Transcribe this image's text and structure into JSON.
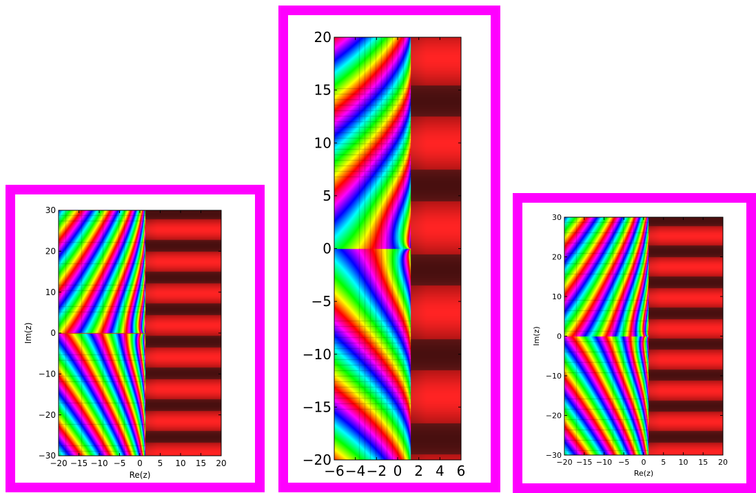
{
  "colors": {
    "frame": "#ff00ff",
    "background": "#ffffff",
    "axes": "#000000"
  },
  "chart_data": [
    {
      "type": "heatmap",
      "title": "",
      "xlabel": "Re(z)",
      "ylabel": "Im(z)",
      "xlim": [
        -20,
        20
      ],
      "ylim": [
        -30,
        30
      ],
      "xticks": [
        -20,
        -15,
        -10,
        -5,
        0,
        5,
        10,
        15,
        20
      ],
      "yticks": [
        -30,
        -20,
        -10,
        0,
        10,
        20,
        30
      ],
      "xtick_labels": [
        "−20",
        "−15",
        "−10",
        "−5",
        "0",
        "5",
        "10",
        "15",
        "20"
      ],
      "ytick_labels": [
        "−30",
        "−20",
        "−10",
        "0",
        "10",
        "20",
        "30"
      ],
      "colormap": "hue = arg(f(z)); left of Re(z)≈1 cyclic rainbow bands, right side red bands",
      "grid": false,
      "legend": "none"
    },
    {
      "type": "heatmap",
      "title": "",
      "xlabel": "",
      "ylabel": "",
      "xlim": [
        -6,
        6
      ],
      "ylim": [
        -20,
        20
      ],
      "xticks": [
        -6,
        -4,
        -2,
        0,
        2,
        4,
        6
      ],
      "yticks": [
        -20,
        -15,
        -10,
        -5,
        0,
        5,
        10,
        15,
        20
      ],
      "xtick_labels": [
        "−6",
        "−4",
        "−2",
        "0",
        "2",
        "4",
        "6"
      ],
      "ytick_labels": [
        "−20",
        "−15",
        "−10",
        "−5",
        "0",
        "5",
        "10",
        "15",
        "20"
      ],
      "colormap": "hue = arg(f(z)); zoomed view with zeros near ±14i and a pole near 0",
      "grid": false,
      "legend": "none"
    },
    {
      "type": "heatmap",
      "title": "",
      "xlabel": "Re(z)",
      "ylabel": "Im(z)",
      "xlim": [
        -20,
        20
      ],
      "ylim": [
        -30,
        30
      ],
      "xticks": [
        -20,
        -15,
        -10,
        -5,
        0,
        5,
        10,
        15,
        20
      ],
      "yticks": [
        -30,
        -20,
        -10,
        0,
        10,
        20,
        30
      ],
      "xtick_labels": [
        "−20",
        "−15",
        "−10",
        "−5",
        "0",
        "5",
        "10",
        "15",
        "20"
      ],
      "ytick_labels": [
        "−30",
        "−20",
        "−10",
        "0",
        "10",
        "20",
        "30"
      ],
      "colormap": "hue = arg(f(z)); left of Re(z)≈1 cyclic rainbow bands, right side red bands",
      "grid": false,
      "legend": "none"
    }
  ]
}
